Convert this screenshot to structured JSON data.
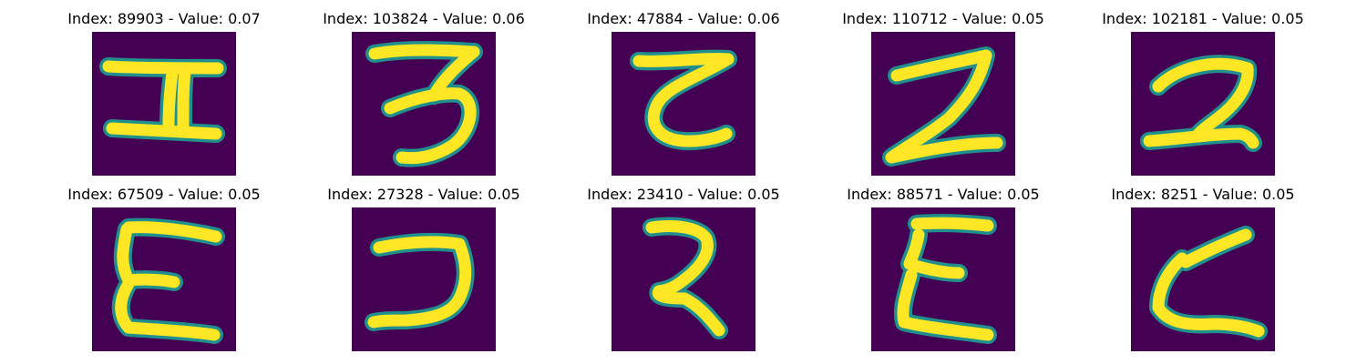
{
  "colors": {
    "background": "#440154",
    "stroke_core": "#fde725",
    "stroke_edge": "#21908d"
  },
  "panels": [
    {
      "title": "Index: 89903 - Value: 0.07",
      "glyph": "glyph-h-shape"
    },
    {
      "title": "Index: 103824 - Value: 0.06",
      "glyph": "glyph-three-shape"
    },
    {
      "title": "Index: 47884 - Value: 0.06",
      "glyph": "glyph-c-shape"
    },
    {
      "title": "Index: 110712 - Value: 0.05",
      "glyph": "glyph-z-shape"
    },
    {
      "title": "Index: 102181 - Value: 0.05",
      "glyph": "glyph-two-shape"
    },
    {
      "title": "Index: 67509 - Value: 0.05",
      "glyph": "glyph-e-shape"
    },
    {
      "title": "Index: 27328 - Value: 0.05",
      "glyph": "glyph-reverse-c-shape"
    },
    {
      "title": "Index: 23410 - Value: 0.05",
      "glyph": "glyph-hook-shape"
    },
    {
      "title": "Index: 88571 - Value: 0.05",
      "glyph": "glyph-sigma-shape"
    },
    {
      "title": "Index: 8251 - Value: 0.05",
      "glyph": "glyph-l-shape"
    }
  ]
}
